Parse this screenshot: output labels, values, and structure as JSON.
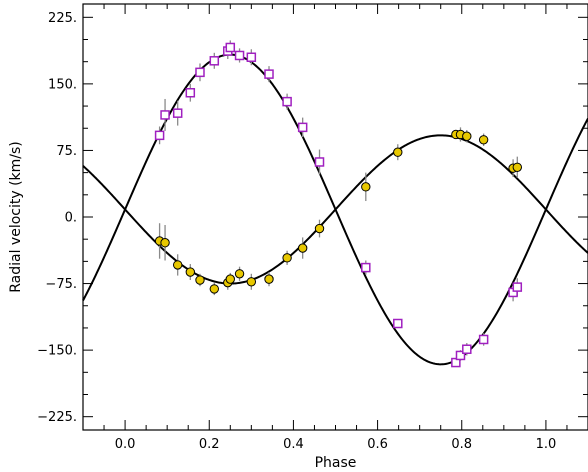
{
  "chart_data": {
    "type": "scatter",
    "title": "",
    "xlabel": "Phase",
    "ylabel": "Radial velocity (km/s)",
    "xlim": [
      -0.1,
      1.1
    ],
    "ylim": [
      -240,
      240
    ],
    "grid": false,
    "legend": "none",
    "x_ticks": [
      {
        "value": 0.0,
        "label": "0.0"
      },
      {
        "value": 0.2,
        "label": "0.2"
      },
      {
        "value": 0.4,
        "label": "0.4"
      },
      {
        "value": 0.6,
        "label": "0.6"
      },
      {
        "value": 0.8,
        "label": "0.8"
      },
      {
        "value": 1.0,
        "label": "1.0"
      }
    ],
    "y_ticks": [
      {
        "value": 225,
        "label": "225."
      },
      {
        "value": 150,
        "label": "150."
      },
      {
        "value": 75,
        "label": "75."
      },
      {
        "value": 0,
        "label": "0."
      },
      {
        "value": -75,
        "label": "−75."
      },
      {
        "value": -150,
        "label": "−150."
      },
      {
        "value": -225,
        "label": "−225."
      }
    ],
    "curves": [
      {
        "gamma": 8.5,
        "amplitude": 174.5,
        "color": "#000000"
      },
      {
        "gamma": 8.5,
        "amplitude": -83.5,
        "color": "#000000"
      }
    ],
    "series": [
      {
        "marker": "square",
        "color": "#a020c0",
        "points": [
          {
            "x": 0.082,
            "y": 92,
            "err": 10
          },
          {
            "x": 0.095,
            "y": 115,
            "err": 18
          },
          {
            "x": 0.125,
            "y": 117,
            "err": 14
          },
          {
            "x": 0.155,
            "y": 140,
            "err": 10
          },
          {
            "x": 0.178,
            "y": 163,
            "err": 10
          },
          {
            "x": 0.212,
            "y": 176,
            "err": 9
          },
          {
            "x": 0.244,
            "y": 187,
            "err": 9
          },
          {
            "x": 0.25,
            "y": 191,
            "err": 8
          },
          {
            "x": 0.272,
            "y": 182,
            "err": 8
          },
          {
            "x": 0.3,
            "y": 180,
            "err": 9
          },
          {
            "x": 0.342,
            "y": 161,
            "err": 9
          },
          {
            "x": 0.385,
            "y": 130,
            "err": 9
          },
          {
            "x": 0.422,
            "y": 101,
            "err": 11
          },
          {
            "x": 0.462,
            "y": 62,
            "err": 14
          },
          {
            "x": 0.572,
            "y": -57,
            "err": 8
          },
          {
            "x": 0.648,
            "y": -120,
            "err": 5
          },
          {
            "x": 0.786,
            "y": -164,
            "err": 4
          },
          {
            "x": 0.797,
            "y": -156,
            "err": 6
          },
          {
            "x": 0.812,
            "y": -149,
            "err": 7
          },
          {
            "x": 0.852,
            "y": -138,
            "err": 7
          },
          {
            "x": 0.922,
            "y": -85,
            "err": 10
          },
          {
            "x": 0.932,
            "y": -79,
            "err": 10
          }
        ]
      },
      {
        "marker": "circle",
        "color": "#e8c800",
        "points": [
          {
            "x": 0.082,
            "y": -27,
            "err": 20
          },
          {
            "x": 0.095,
            "y": -29,
            "err": 20
          },
          {
            "x": 0.125,
            "y": -54,
            "err": 12
          },
          {
            "x": 0.155,
            "y": -62,
            "err": 9
          },
          {
            "x": 0.178,
            "y": -71,
            "err": 7
          },
          {
            "x": 0.212,
            "y": -81,
            "err": 7
          },
          {
            "x": 0.244,
            "y": -74,
            "err": 8
          },
          {
            "x": 0.25,
            "y": -70,
            "err": 7
          },
          {
            "x": 0.272,
            "y": -64,
            "err": 8
          },
          {
            "x": 0.3,
            "y": -73,
            "err": 9
          },
          {
            "x": 0.342,
            "y": -70,
            "err": 8
          },
          {
            "x": 0.385,
            "y": -46,
            "err": 8
          },
          {
            "x": 0.422,
            "y": -35,
            "err": 12
          },
          {
            "x": 0.462,
            "y": -13,
            "err": 10
          },
          {
            "x": 0.572,
            "y": 34,
            "err": 16
          },
          {
            "x": 0.648,
            "y": 73,
            "err": 9
          },
          {
            "x": 0.786,
            "y": 93,
            "err": 5
          },
          {
            "x": 0.797,
            "y": 93,
            "err": 8
          },
          {
            "x": 0.812,
            "y": 91,
            "err": 7
          },
          {
            "x": 0.852,
            "y": 87,
            "err": 7
          },
          {
            "x": 0.922,
            "y": 55,
            "err": 10
          },
          {
            "x": 0.932,
            "y": 56,
            "err": 12
          }
        ]
      }
    ]
  }
}
